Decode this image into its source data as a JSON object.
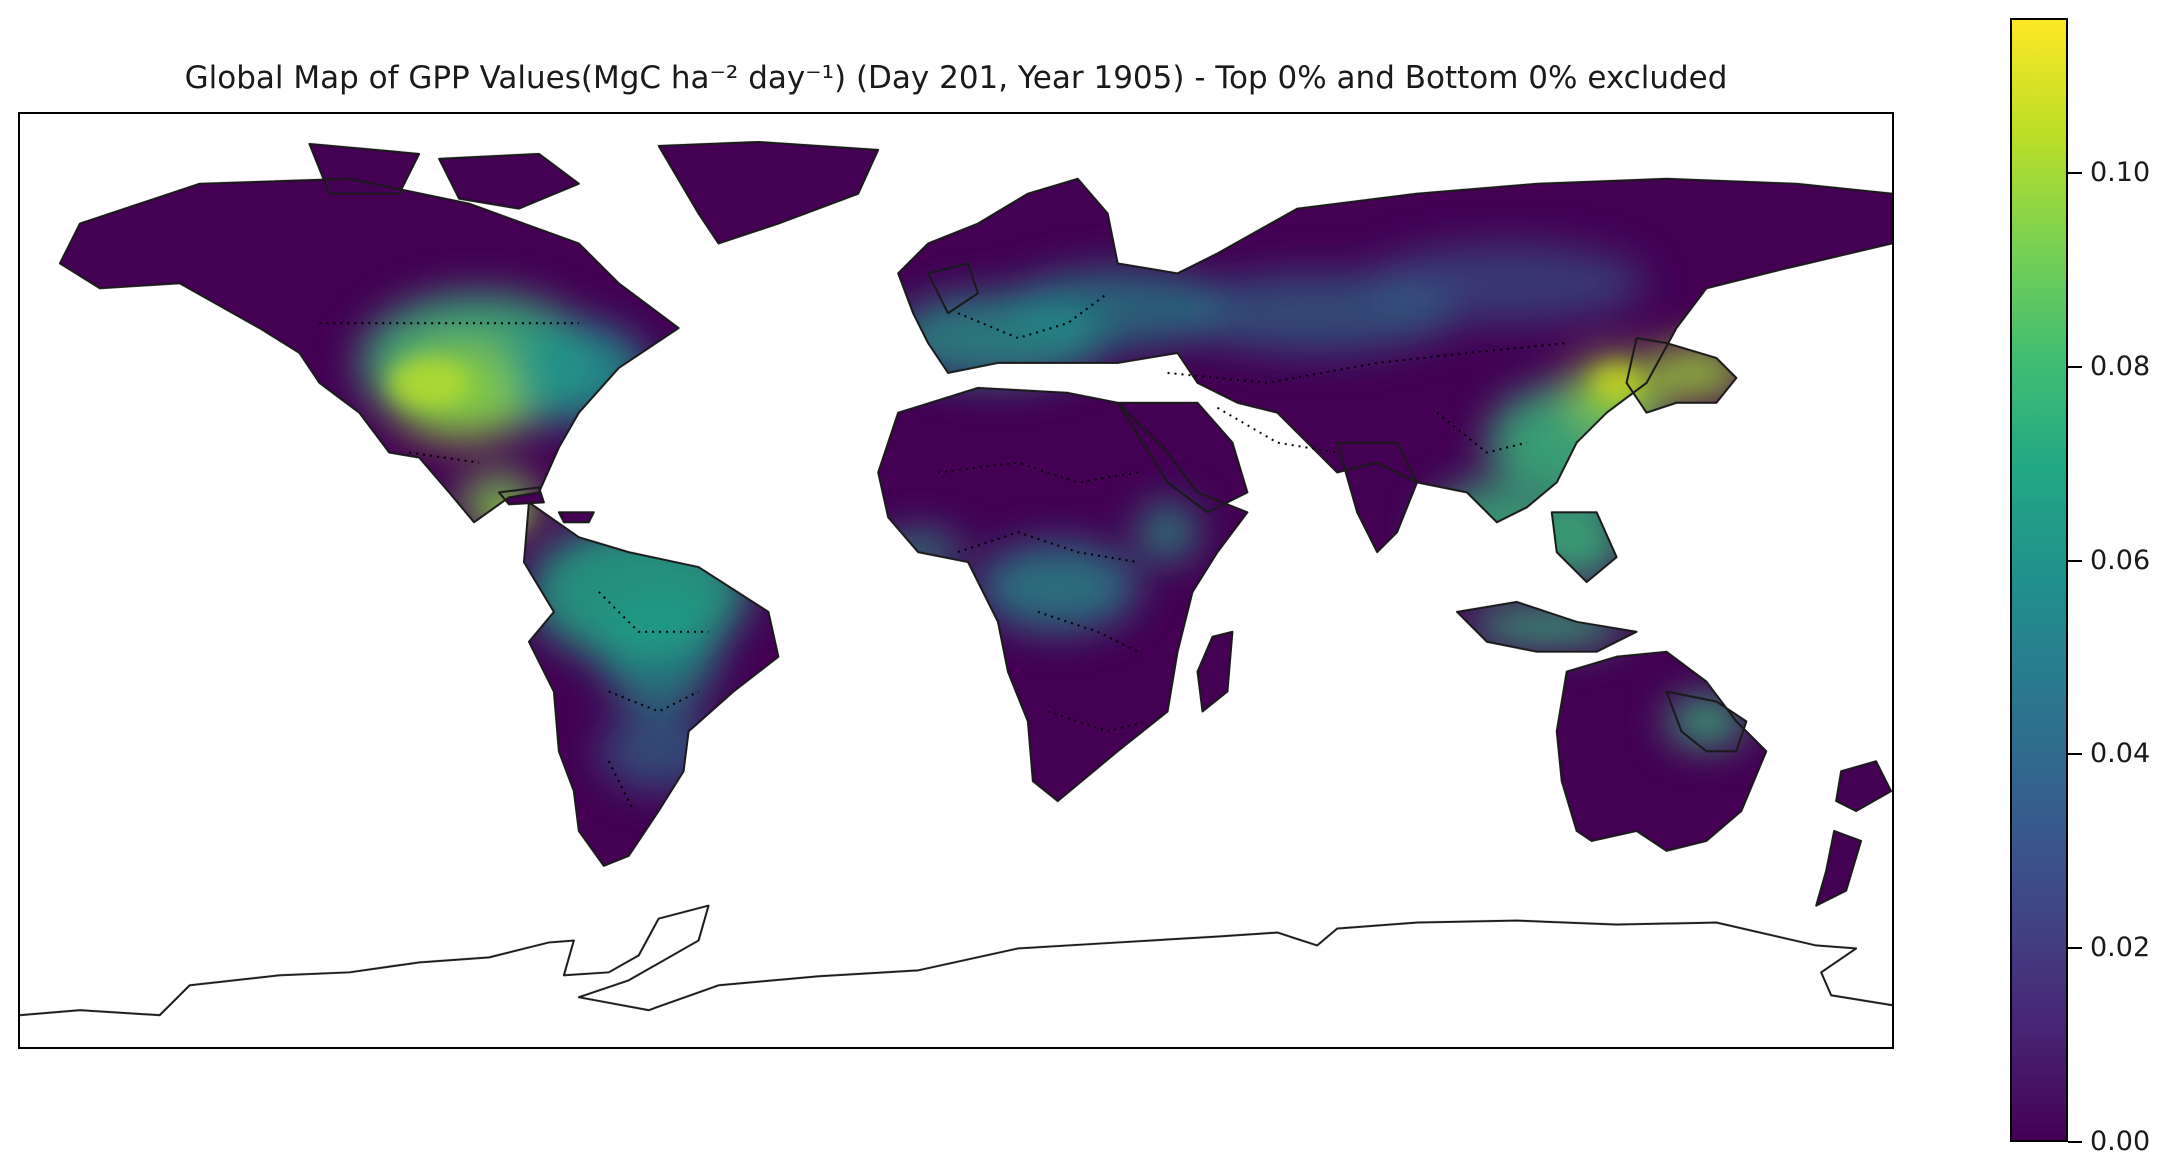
{
  "title": "Global  Map of  GPP Values(MgC ha⁻² day⁻¹) (Day 201, Year 1905) - Top 0% and Bottom 0% excluded",
  "colorbar": {
    "colormap": "viridis",
    "range": [
      0.0,
      0.116
    ],
    "ticks": [
      "0.00",
      "0.02",
      "0.04",
      "0.06",
      "0.08",
      "0.10"
    ]
  },
  "map": {
    "projection": "PlateCarree",
    "background": "#ffffff",
    "land_base_color": "#440154",
    "coastlines": true,
    "country_borders": "dotted",
    "no_data_regions": [
      "Antarctica"
    ],
    "high_gpp_regions": [
      "Eastern North America",
      "Central America",
      "Amazon Basin",
      "Western and Central Europe",
      "Central Africa",
      "Eastern China",
      "Japan",
      "Southeast Asia",
      "Indonesia"
    ]
  }
}
